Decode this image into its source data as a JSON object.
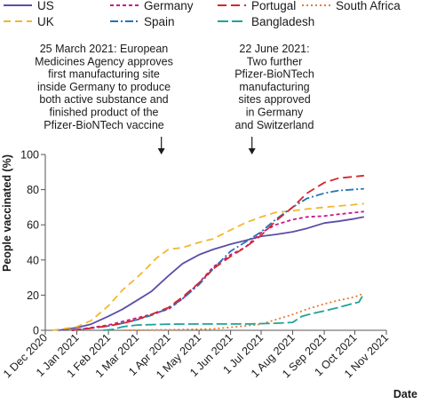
{
  "chart_data": {
    "type": "line",
    "xlabel": "Date",
    "ylabel": "People vaccinated (%)",
    "x_range": [
      "2020-12-01",
      "2021-11-01"
    ],
    "ylim": [
      0,
      100
    ],
    "y_ticks": [
      0,
      20,
      40,
      60,
      80,
      100
    ],
    "x_ticks": [
      {
        "date": "2020-12-01",
        "label": "1 Dec 2020"
      },
      {
        "date": "2021-01-01",
        "label": "1 Jan 2021"
      },
      {
        "date": "2021-02-01",
        "label": "1 Feb 2021"
      },
      {
        "date": "2021-03-01",
        "label": "1 Mar 2021"
      },
      {
        "date": "2021-04-01",
        "label": "1 Apr 2021"
      },
      {
        "date": "2021-05-01",
        "label": "1 May 2021"
      },
      {
        "date": "2021-06-01",
        "label": "1 Jun 2021"
      },
      {
        "date": "2021-07-01",
        "label": "1 Jul 2021"
      },
      {
        "date": "2021-08-01",
        "label": "1 Aug 2021"
      },
      {
        "date": "2021-09-01",
        "label": "1 Sep 2021"
      },
      {
        "date": "2021-10-01",
        "label": "1 Oct 2021"
      },
      {
        "date": "2021-11-01",
        "label": "1 Nov 2021"
      }
    ],
    "grid": false,
    "legend_position": "top",
    "series": [
      {
        "name": "US",
        "color": "#5b4ea8",
        "dash": "solid",
        "points": [
          [
            "2020-12-14",
            0
          ],
          [
            "2021-01-01",
            1.5
          ],
          [
            "2021-01-15",
            3.5
          ],
          [
            "2021-02-01",
            8
          ],
          [
            "2021-02-15",
            12
          ],
          [
            "2021-03-01",
            17
          ],
          [
            "2021-03-15",
            22
          ],
          [
            "2021-04-01",
            31
          ],
          [
            "2021-04-15",
            38
          ],
          [
            "2021-05-01",
            43
          ],
          [
            "2021-05-15",
            46
          ],
          [
            "2021-06-01",
            49
          ],
          [
            "2021-06-15",
            51
          ],
          [
            "2021-07-01",
            53.5
          ],
          [
            "2021-07-15",
            54.5
          ],
          [
            "2021-08-01",
            56
          ],
          [
            "2021-08-15",
            58
          ],
          [
            "2021-09-01",
            61
          ],
          [
            "2021-09-15",
            62
          ],
          [
            "2021-10-01",
            63.5
          ],
          [
            "2021-10-10",
            64.5
          ]
        ]
      },
      {
        "name": "UK",
        "color": "#f2b631",
        "dash": "8,5",
        "points": [
          [
            "2020-12-08",
            0
          ],
          [
            "2021-01-01",
            2
          ],
          [
            "2021-01-15",
            5.5
          ],
          [
            "2021-02-01",
            14
          ],
          [
            "2021-02-15",
            23
          ],
          [
            "2021-03-01",
            30
          ],
          [
            "2021-03-10",
            35
          ],
          [
            "2021-03-20",
            41
          ],
          [
            "2021-04-01",
            46
          ],
          [
            "2021-04-15",
            47
          ],
          [
            "2021-05-01",
            50
          ],
          [
            "2021-05-15",
            52
          ],
          [
            "2021-06-01",
            57
          ],
          [
            "2021-06-15",
            61
          ],
          [
            "2021-07-01",
            64.5
          ],
          [
            "2021-07-15",
            67
          ],
          [
            "2021-08-01",
            68
          ],
          [
            "2021-08-15",
            69
          ],
          [
            "2021-09-01",
            70
          ],
          [
            "2021-10-01",
            71.5
          ],
          [
            "2021-10-10",
            72
          ]
        ]
      },
      {
        "name": "Germany",
        "color": "#c8178a",
        "dash": "4,3",
        "points": [
          [
            "2020-12-27",
            0
          ],
          [
            "2021-01-15",
            1.5
          ],
          [
            "2021-02-01",
            3
          ],
          [
            "2021-02-15",
            5
          ],
          [
            "2021-03-01",
            7
          ],
          [
            "2021-03-15",
            9
          ],
          [
            "2021-04-01",
            12
          ],
          [
            "2021-04-15",
            18
          ],
          [
            "2021-05-01",
            27
          ],
          [
            "2021-05-15",
            36
          ],
          [
            "2021-06-01",
            43
          ],
          [
            "2021-06-15",
            47
          ],
          [
            "2021-07-01",
            55.5
          ],
          [
            "2021-07-15",
            60
          ],
          [
            "2021-08-01",
            63
          ],
          [
            "2021-08-15",
            64.5
          ],
          [
            "2021-09-01",
            65
          ],
          [
            "2021-09-15",
            66
          ],
          [
            "2021-10-10",
            67.5
          ]
        ]
      },
      {
        "name": "Spain",
        "color": "#2474b5",
        "dash": "9,3,2,3",
        "points": [
          [
            "2020-12-27",
            0
          ],
          [
            "2021-01-15",
            1.2
          ],
          [
            "2021-02-01",
            2.5
          ],
          [
            "2021-02-15",
            4
          ],
          [
            "2021-03-01",
            6
          ],
          [
            "2021-03-15",
            8.5
          ],
          [
            "2021-04-01",
            12.5
          ],
          [
            "2021-04-15",
            18
          ],
          [
            "2021-05-01",
            26
          ],
          [
            "2021-05-15",
            35
          ],
          [
            "2021-06-01",
            45
          ],
          [
            "2021-06-15",
            50
          ],
          [
            "2021-07-01",
            56
          ],
          [
            "2021-07-15",
            63
          ],
          [
            "2021-08-01",
            70
          ],
          [
            "2021-08-15",
            75
          ],
          [
            "2021-09-01",
            78
          ],
          [
            "2021-09-15",
            79.5
          ],
          [
            "2021-10-10",
            80.5
          ]
        ]
      },
      {
        "name": "Portugal",
        "color": "#d6262b",
        "dash": "10,5",
        "points": [
          [
            "2020-12-27",
            0
          ],
          [
            "2021-01-15",
            1.2
          ],
          [
            "2021-02-01",
            2.5
          ],
          [
            "2021-02-15",
            4
          ],
          [
            "2021-03-01",
            6
          ],
          [
            "2021-03-15",
            9
          ],
          [
            "2021-04-01",
            13
          ],
          [
            "2021-04-15",
            19
          ],
          [
            "2021-05-01",
            27
          ],
          [
            "2021-05-15",
            35
          ],
          [
            "2021-06-01",
            42
          ],
          [
            "2021-06-15",
            47
          ],
          [
            "2021-07-01",
            54
          ],
          [
            "2021-07-15",
            62
          ],
          [
            "2021-08-01",
            70
          ],
          [
            "2021-08-15",
            78
          ],
          [
            "2021-09-01",
            84
          ],
          [
            "2021-09-15",
            86.5
          ],
          [
            "2021-10-10",
            88
          ]
        ]
      },
      {
        "name": "South Africa",
        "color": "#ea7a2e",
        "dash": "2,3",
        "points": [
          [
            "2021-02-17",
            0
          ],
          [
            "2021-04-01",
            0.3
          ],
          [
            "2021-05-15",
            0.8
          ],
          [
            "2021-06-15",
            2.5
          ],
          [
            "2021-07-01",
            3.5
          ],
          [
            "2021-07-15",
            6
          ],
          [
            "2021-08-01",
            9
          ],
          [
            "2021-08-15",
            12
          ],
          [
            "2021-09-01",
            15
          ],
          [
            "2021-09-15",
            17
          ],
          [
            "2021-10-01",
            19
          ],
          [
            "2021-10-10",
            21
          ]
        ]
      },
      {
        "name": "Bangladesh",
        "color": "#1fa396",
        "dash": "12,4",
        "points": [
          [
            "2021-01-27",
            0
          ],
          [
            "2021-02-05",
            0.5
          ],
          [
            "2021-02-15",
            2
          ],
          [
            "2021-03-01",
            3
          ],
          [
            "2021-04-01",
            3.5
          ],
          [
            "2021-05-01",
            3.6
          ],
          [
            "2021-06-01",
            3.6
          ],
          [
            "2021-06-20",
            3.6
          ],
          [
            "2021-07-01",
            3.8
          ],
          [
            "2021-07-15",
            4
          ],
          [
            "2021-08-01",
            4.5
          ],
          [
            "2021-08-10",
            8
          ],
          [
            "2021-08-20",
            9.5
          ],
          [
            "2021-09-01",
            11
          ],
          [
            "2021-09-15",
            13
          ],
          [
            "2021-10-01",
            15.5
          ],
          [
            "2021-10-05",
            16
          ],
          [
            "2021-10-10",
            21
          ]
        ]
      }
    ],
    "annotations": [
      {
        "date": "2021-03-25",
        "lines": [
          "25 March 2021: European",
          "Medicines Agency approves",
          "first manufacturing site",
          "inside Germany to produce",
          "both active substance and",
          "finished product of the",
          "Pfizer-BioNTech vaccine"
        ]
      },
      {
        "date": "2021-06-22",
        "lines": [
          "22 June 2021:",
          "Two further",
          "Pfizer-BioNTech",
          "manufacturing",
          "sites approved",
          "in Germany",
          "and Switzerland"
        ]
      }
    ]
  }
}
